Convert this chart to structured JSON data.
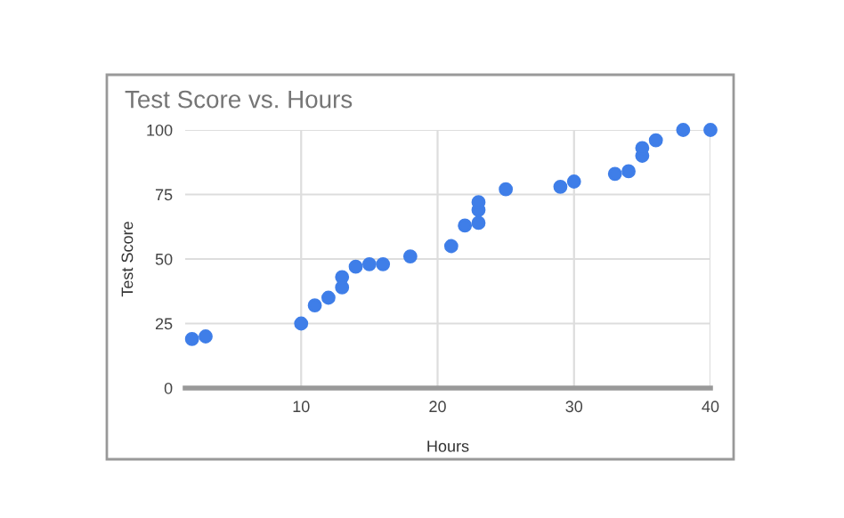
{
  "chart_data": {
    "type": "scatter",
    "title": "Test Score vs. Hours",
    "xlabel": "Hours",
    "ylabel": "Test Score",
    "x": [
      2,
      3,
      10,
      11,
      12,
      13,
      13,
      14,
      15,
      16,
      18,
      21,
      22,
      23,
      23,
      23,
      25,
      29,
      30,
      33,
      34,
      35,
      35,
      36,
      38,
      40
    ],
    "series": [
      {
        "color": "#3f7ee8",
        "values": [
          19,
          20,
          25,
          32,
          35,
          39,
          43,
          47,
          48,
          48,
          51,
          55,
          63,
          64,
          69,
          72,
          77,
          78,
          80,
          83,
          84,
          90,
          93,
          96,
          100,
          100
        ]
      }
    ],
    "xlim": [
      1.5,
      40
    ],
    "ylim": [
      0,
      100
    ],
    "xticks": [
      10,
      20,
      30,
      40
    ],
    "yticks": [
      0,
      25,
      50,
      75,
      100
    ],
    "grid": true,
    "marker": "circle",
    "legend": false
  }
}
